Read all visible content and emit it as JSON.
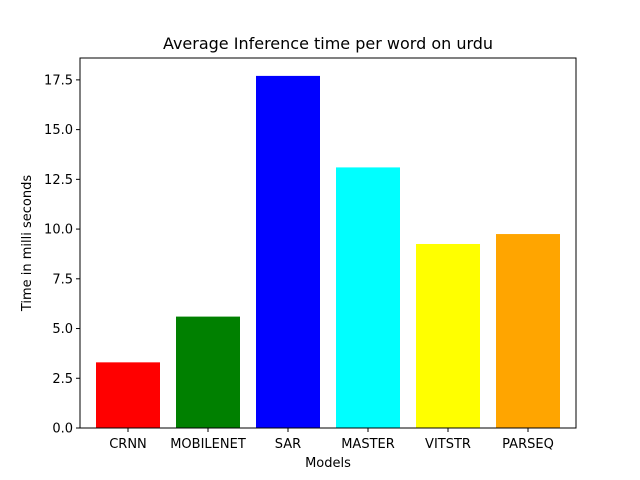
{
  "chart_data": {
    "type": "bar",
    "title": "Average Inference time per word on urdu",
    "xlabel": "Models",
    "ylabel": "Time in milli seconds",
    "categories": [
      "CRNN",
      "MOBILENET",
      "SAR",
      "MASTER",
      "VITSTR",
      "PARSEQ"
    ],
    "values": [
      3.3,
      5.6,
      17.7,
      13.1,
      9.25,
      9.75
    ],
    "colors": [
      "#ff0000",
      "#008000",
      "#0000ff",
      "#00ffff",
      "#ffff00",
      "#ffa500"
    ],
    "ylim": [
      0,
      18.6
    ],
    "yticks": [
      0.0,
      2.5,
      5.0,
      7.5,
      10.0,
      12.5,
      15.0,
      17.5
    ],
    "ytick_labels": [
      "0.0",
      "2.5",
      "5.0",
      "7.5",
      "10.0",
      "12.5",
      "15.0",
      "17.5"
    ],
    "grid": false,
    "legend": "none"
  }
}
